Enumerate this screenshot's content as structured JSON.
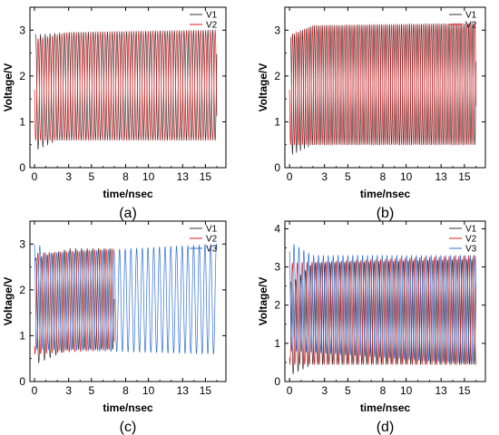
{
  "chart_data": [
    {
      "type": "line",
      "panel_label": "(a)",
      "xlabel": "time/nsec",
      "ylabel": "Voltage/V",
      "xlim": [
        -0.4,
        16.8
      ],
      "ylim": [
        0,
        3.5
      ],
      "x_ticks": [
        0,
        3,
        5,
        8,
        10,
        13,
        15
      ],
      "y_ticks": [
        0,
        1,
        2,
        3
      ],
      "legend_position": "top-right",
      "series": [
        {
          "name": "V1",
          "color": "#333333",
          "t_start": 0.1,
          "t_end": 16,
          "period": 0.42,
          "phase": 0,
          "peak": [
            [
              0.3,
              2.9
            ],
            [
              3,
              2.95
            ],
            [
              16,
              3.0
            ]
          ],
          "trough": [
            [
              0.3,
              0.4
            ],
            [
              2,
              0.6
            ],
            [
              16,
              0.6
            ]
          ]
        },
        {
          "name": "V2",
          "color": "#e31a1c",
          "t_start": 0,
          "t_end": 16,
          "period": 0.42,
          "phase": 0.21,
          "peak": [
            [
              0,
              2.8
            ],
            [
              3,
              2.95
            ],
            [
              16,
              3.0
            ]
          ],
          "trough": [
            [
              0,
              0.6
            ],
            [
              16,
              0.6
            ]
          ]
        }
      ]
    },
    {
      "type": "line",
      "panel_label": "(b)",
      "xlabel": "time/nsec",
      "ylabel": "Voltage/V",
      "xlim": [
        -0.4,
        16.8
      ],
      "ylim": [
        0,
        3.5
      ],
      "x_ticks": [
        0,
        3,
        5,
        8,
        10,
        13,
        15
      ],
      "y_ticks": [
        0,
        1,
        2,
        3
      ],
      "legend_position": "top-right",
      "series": [
        {
          "name": "V1",
          "color": "#333333",
          "t_start": 0.1,
          "t_end": 16,
          "period": 0.34,
          "phase": 0,
          "peak": [
            [
              0.3,
              2.9
            ],
            [
              2,
              3.1
            ],
            [
              16,
              3.15
            ]
          ],
          "trough": [
            [
              0.3,
              0.3
            ],
            [
              2,
              0.5
            ],
            [
              16,
              0.5
            ]
          ]
        },
        {
          "name": "V2",
          "color": "#e31a1c",
          "t_start": 0,
          "t_end": 16,
          "period": 0.34,
          "phase": 0.17,
          "peak": [
            [
              0,
              2.9
            ],
            [
              2,
              3.1
            ],
            [
              16,
              3.15
            ]
          ],
          "trough": [
            [
              0,
              0.5
            ],
            [
              16,
              0.5
            ]
          ]
        }
      ]
    },
    {
      "type": "line",
      "panel_label": "(c)",
      "xlabel": "time/nsec",
      "ylabel": "Voltage/V",
      "xlim": [
        -0.4,
        16.8
      ],
      "ylim": [
        0,
        3.5
      ],
      "x_ticks": [
        0,
        3,
        5,
        8,
        10,
        13,
        15
      ],
      "y_ticks": [
        0,
        1,
        2,
        3
      ],
      "legend_position": "top-right",
      "series": [
        {
          "name": "V1",
          "color": "#333333",
          "t_start": 0.1,
          "t_end": 7,
          "period": 0.5,
          "phase": 0,
          "peak": [
            [
              0.3,
              2.7
            ],
            [
              3,
              2.9
            ],
            [
              7,
              2.9
            ]
          ],
          "trough": [
            [
              0.3,
              0.4
            ],
            [
              3,
              0.7
            ],
            [
              7,
              0.7
            ]
          ]
        },
        {
          "name": "V2",
          "color": "#e31a1c",
          "t_start": 0,
          "t_end": 7,
          "period": 0.5,
          "phase": 0.17,
          "peak": [
            [
              0,
              2.8
            ],
            [
              7,
              2.9
            ]
          ],
          "trough": [
            [
              0,
              0.6
            ],
            [
              7,
              0.7
            ]
          ]
        },
        {
          "name": "V3",
          "color": "#2f6fd6",
          "t_start": 0,
          "t_end": 16,
          "period": 0.5,
          "phase": 0.34,
          "peak": [
            [
              0,
              3.1
            ],
            [
              1,
              2.8
            ],
            [
              16,
              3.0
            ]
          ],
          "trough": [
            [
              0,
              0.7
            ],
            [
              16,
              0.6
            ]
          ]
        }
      ]
    },
    {
      "type": "line",
      "panel_label": "(d)",
      "xlabel": "time/nsec",
      "ylabel": "Voltage/V",
      "xlim": [
        -0.4,
        16.8
      ],
      "ylim": [
        0,
        4.2
      ],
      "x_ticks": [
        0,
        3,
        5,
        8,
        10,
        13,
        15
      ],
      "y_ticks": [
        0,
        1,
        2,
        3,
        4
      ],
      "legend_position": "top-right",
      "series": [
        {
          "name": "V1",
          "color": "#333333",
          "t_start": 0.1,
          "t_end": 16,
          "period": 0.42,
          "phase": 0,
          "peak": [
            [
              0.3,
              2.6
            ],
            [
              2,
              3.1
            ],
            [
              16,
              3.2
            ]
          ],
          "trough": [
            [
              0.3,
              0.2
            ],
            [
              2,
              0.45
            ],
            [
              16,
              0.45
            ]
          ]
        },
        {
          "name": "V2",
          "color": "#e31a1c",
          "t_start": 0,
          "t_end": 16,
          "period": 0.42,
          "phase": 0.14,
          "peak": [
            [
              0,
              3.1
            ],
            [
              16,
              3.3
            ]
          ],
          "trough": [
            [
              0,
              0.45
            ],
            [
              16,
              0.45
            ]
          ]
        },
        {
          "name": "V3",
          "color": "#2f6fd6",
          "t_start": 0,
          "t_end": 16,
          "period": 0.42,
          "phase": 0.28,
          "peak": [
            [
              0.3,
              3.6
            ],
            [
              2,
              3.3
            ],
            [
              16,
              3.3
            ]
          ],
          "trough": [
            [
              0.3,
              0.8
            ],
            [
              16,
              0.45
            ]
          ]
        }
      ]
    }
  ]
}
